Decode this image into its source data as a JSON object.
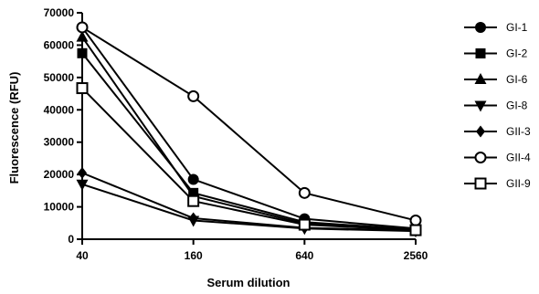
{
  "chart_data": {
    "type": "line",
    "xlabel": "Serum dilution",
    "ylabel": "Fluorescence (RFU)",
    "x": [
      40,
      160,
      640,
      2560
    ],
    "x_tick_labels": [
      "40",
      "160",
      "640",
      "2560"
    ],
    "x_scale": "log",
    "ylim": [
      0,
      70000
    ],
    "y_ticks": [
      0,
      10000,
      20000,
      30000,
      40000,
      50000,
      60000,
      70000
    ],
    "y_tick_labels": [
      "0",
      "10000",
      "20000",
      "30000",
      "40000",
      "50000",
      "60000",
      "70000"
    ],
    "grid": false,
    "legend_position": "right",
    "series": [
      {
        "name": "GI-1",
        "marker": "circle-filled",
        "values": [
          65500,
          18500,
          6300,
          3300
        ]
      },
      {
        "name": "GI-2",
        "marker": "square-filled",
        "values": [
          57500,
          14300,
          5300,
          3000
        ]
      },
      {
        "name": "GI-6",
        "marker": "triangle-up-filled",
        "values": [
          62500,
          13300,
          4800,
          2900
        ]
      },
      {
        "name": "GI-8",
        "marker": "triangle-down-filled",
        "values": [
          17000,
          5800,
          3300,
          2500
        ]
      },
      {
        "name": "GII-3",
        "marker": "diamond-filled",
        "values": [
          20500,
          6500,
          3500,
          2700
        ]
      },
      {
        "name": "GII-4",
        "marker": "circle-open",
        "values": [
          65500,
          44200,
          14300,
          5800
        ]
      },
      {
        "name": "GII-9",
        "marker": "square-open",
        "values": [
          46700,
          11800,
          4500,
          2800
        ]
      }
    ]
  }
}
